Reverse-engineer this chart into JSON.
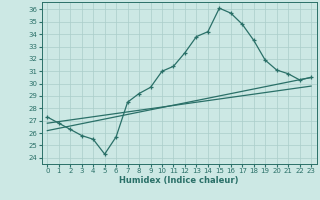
{
  "xlabel": "Humidex (Indice chaleur)",
  "ylabel": "",
  "bg_color": "#cce8e4",
  "line_color": "#2a7068",
  "grid_color": "#aaceca",
  "xlim": [
    -0.5,
    23.5
  ],
  "ylim": [
    23.5,
    36.6
  ],
  "yticks": [
    24,
    25,
    26,
    27,
    28,
    29,
    30,
    31,
    32,
    33,
    34,
    35,
    36
  ],
  "xticks": [
    0,
    1,
    2,
    3,
    4,
    5,
    6,
    7,
    8,
    9,
    10,
    11,
    12,
    13,
    14,
    15,
    16,
    17,
    18,
    19,
    20,
    21,
    22,
    23
  ],
  "main_line_x": [
    0,
    1,
    2,
    3,
    4,
    5,
    6,
    7,
    8,
    9,
    10,
    11,
    12,
    13,
    14,
    15,
    16,
    17,
    18,
    19,
    20,
    21,
    22,
    23
  ],
  "main_line_y": [
    27.3,
    26.8,
    26.3,
    25.8,
    25.5,
    24.3,
    25.7,
    28.5,
    29.2,
    29.7,
    31.0,
    31.4,
    32.5,
    33.8,
    34.2,
    36.1,
    35.7,
    34.8,
    33.5,
    31.9,
    31.1,
    30.8,
    30.3,
    30.5
  ],
  "line2_x": [
    0,
    23
  ],
  "line2_y": [
    26.2,
    30.5
  ],
  "line3_x": [
    0,
    23
  ],
  "line3_y": [
    26.8,
    29.8
  ],
  "xlabel_fontsize": 6.0,
  "tick_fontsize": 5.0
}
